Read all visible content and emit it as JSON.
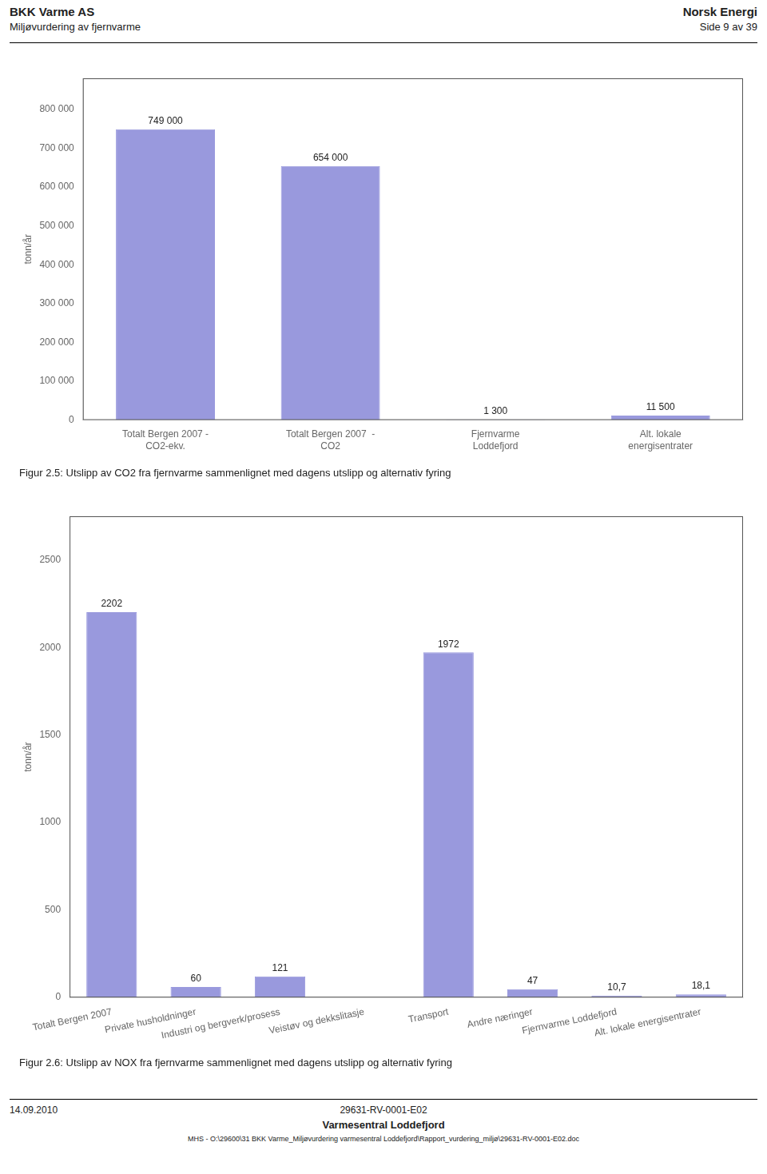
{
  "annotations": [
    "BKK Varme AS",
    "Miljøvurdering av fjernvarme",
    "Norsk Energi",
    "Side 9 av 39",
    "14.09.2010",
    "29631-RV-0001-E02",
    "Varmesentral Loddefjord",
    "MHS - O:\\29600\\31 BKK Varme_Miljøvurdering varmesentral Loddefjord\\Rapport_vurdering_miljø\\29631-RV-0001-E02.doc"
  ],
  "chart_data": [
    {
      "type": "bar",
      "title": "Figur 2.5: Utslipp av CO2 fra fjernvarme sammenlignet med dagens utslipp og alternativ fyring",
      "ylabel": "tonn/år",
      "categories": [
        "Totalt Bergen 2007 -\nCO2-ekv.",
        "Totalt Bergen 2007  -\nCO2",
        "Fjernvarme\nLoddefjord",
        "Alt. lokale\nenergisentrater"
      ],
      "values": [
        749000,
        654000,
        1300,
        11500
      ],
      "value_labels": [
        "749 000",
        "654 000",
        "1 300",
        "11 500"
      ],
      "color": "#9999dd",
      "ylim": [
        0,
        880000
      ],
      "yticks": [
        0,
        {
          "value": 100000,
          "label": "100 000"
        },
        {
          "value": 200000,
          "label": "200 000"
        },
        {
          "value": 300000,
          "label": "300 000"
        },
        {
          "value": 400000,
          "label": "400 000"
        },
        {
          "value": 500000,
          "label": "500 000"
        },
        {
          "value": 600000,
          "label": "600 000"
        },
        {
          "value": 700000,
          "label": "700 000"
        },
        {
          "value": 800000,
          "label": "800 000"
        }
      ],
      "grid": false,
      "data_labels": true
    },
    {
      "type": "bar",
      "title": "Figur 2.6: Utslipp av NOX fra fjernvarme sammenlignet med dagens utslipp og alternativ fyring",
      "ylabel": "tonn/år",
      "categories": [
        "Totalt Bergen 2007",
        "Private husholdninger",
        "Industri og bergverk/prosess",
        "Veistøv og dekkslitasje",
        "Transport",
        "Andre næringer",
        "Fjernvarme Loddefjord",
        "Alt. lokale energisentrater"
      ],
      "values": [
        2202,
        60,
        121,
        0,
        1972,
        47,
        10.7,
        18.1
      ],
      "value_labels": [
        "2202",
        "60",
        "121",
        null,
        "1972",
        "47",
        "10,7",
        "18,1"
      ],
      "color": "#9999dd",
      "ylim": [
        0,
        2750
      ],
      "yticks": [
        0,
        500,
        1000,
        1500,
        2000,
        2500
      ],
      "grid": false,
      "data_labels": true
    }
  ]
}
